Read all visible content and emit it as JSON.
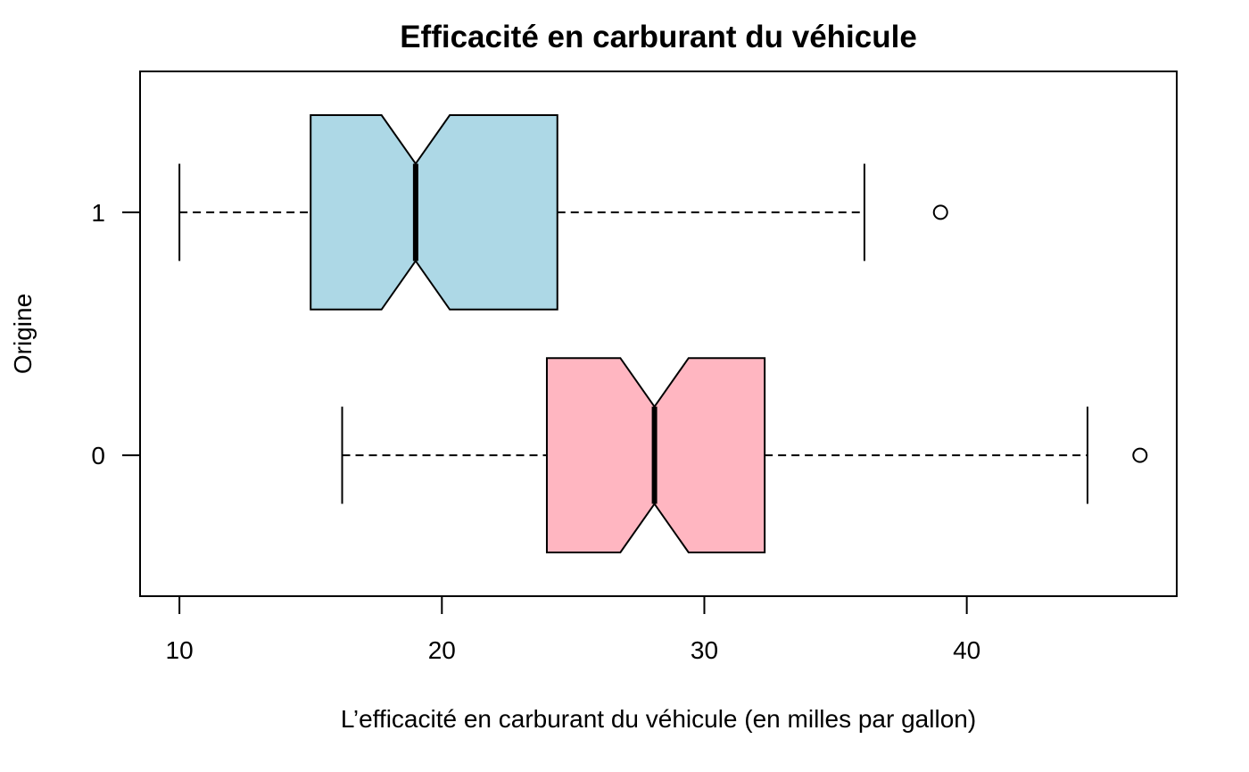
{
  "chart_data": {
    "type": "boxplot",
    "orientation": "horizontal",
    "notched": true,
    "title": "Efficacité en carburant du véhicule",
    "xlabel": "L’efficacité en carburant du véhicule (en milles par gallon)",
    "ylabel": "Origine",
    "xlim": [
      8.5,
      48
    ],
    "x_ticks": [
      10,
      20,
      30,
      40
    ],
    "categories": [
      "0",
      "1"
    ],
    "grid": false,
    "legend": "none",
    "series": [
      {
        "category": "1",
        "color": "#add8e6",
        "whisker_low": 10,
        "q1": 15,
        "notch_low": 17.7,
        "median": 19,
        "notch_high": 20.3,
        "q3": 24.4,
        "whisker_high": 36.1,
        "outliers": [
          39
        ]
      },
      {
        "category": "0",
        "color": "#ffb6c1",
        "whisker_low": 16.2,
        "q1": 24,
        "notch_low": 26.8,
        "median": 28.1,
        "notch_high": 29.4,
        "q3": 32.3,
        "whisker_high": 44.6,
        "outliers": [
          46.6
        ]
      }
    ]
  }
}
